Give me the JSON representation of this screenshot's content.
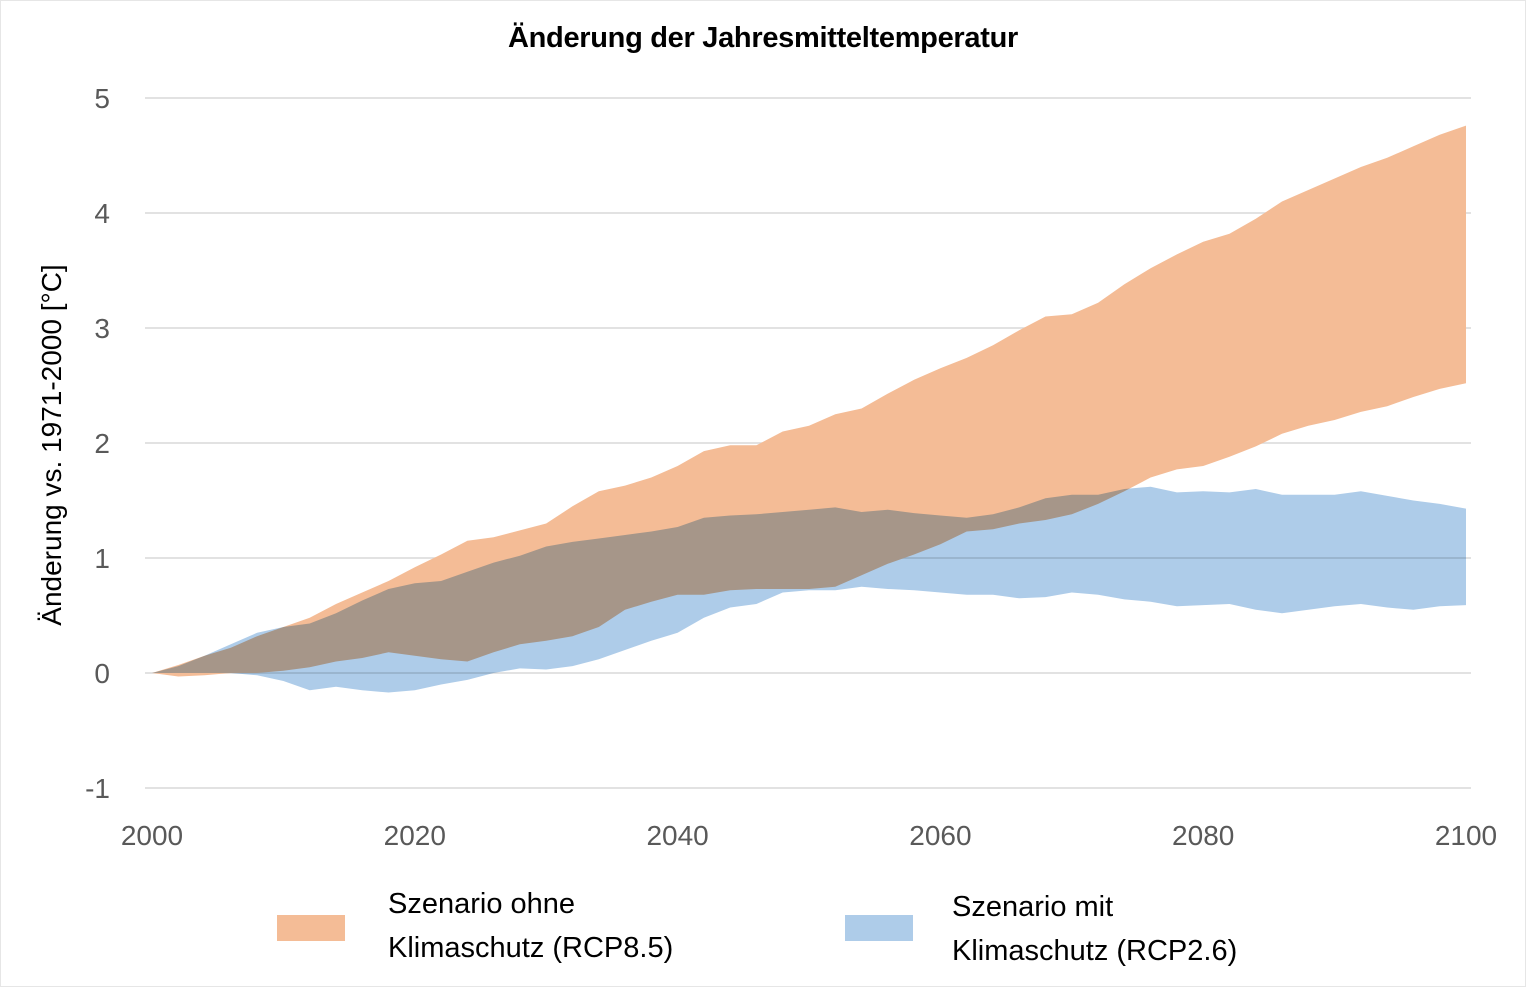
{
  "chart_data": {
    "type": "area",
    "title": "Änderung der Jahresmitteltemperatur",
    "xlabel": "",
    "ylabel": "Änderung vs. 1971-2000 [°C]",
    "xlim": [
      2000,
      2100
    ],
    "ylim": [
      -1,
      5
    ],
    "xticks": [
      2000,
      2020,
      2040,
      2060,
      2080,
      2100
    ],
    "yticks": [
      -1,
      0,
      1,
      2,
      3,
      4,
      5
    ],
    "grid": "horizontal",
    "legend_position": "bottom",
    "x": [
      2000,
      2002,
      2004,
      2006,
      2008,
      2010,
      2012,
      2014,
      2016,
      2018,
      2020,
      2022,
      2024,
      2026,
      2028,
      2030,
      2032,
      2034,
      2036,
      2038,
      2040,
      2042,
      2044,
      2046,
      2048,
      2050,
      2052,
      2054,
      2056,
      2058,
      2060,
      2062,
      2064,
      2066,
      2068,
      2070,
      2072,
      2074,
      2076,
      2078,
      2080,
      2082,
      2084,
      2086,
      2088,
      2090,
      2092,
      2094,
      2096,
      2098,
      2100
    ],
    "series": [
      {
        "name": "Szenario ohne Klimaschutz (RCP8.5)",
        "color": "#F4BC96",
        "upper": [
          0,
          0.07,
          0.15,
          0.22,
          0.32,
          0.4,
          0.48,
          0.6,
          0.7,
          0.8,
          0.92,
          1.03,
          1.15,
          1.18,
          1.24,
          1.3,
          1.45,
          1.58,
          1.63,
          1.7,
          1.8,
          1.93,
          1.98,
          1.98,
          2.1,
          2.15,
          2.25,
          2.3,
          2.43,
          2.55,
          2.65,
          2.74,
          2.85,
          2.98,
          3.1,
          3.12,
          3.22,
          3.38,
          3.52,
          3.64,
          3.75,
          3.82,
          3.95,
          4.1,
          4.2,
          4.3,
          4.4,
          4.48,
          4.58,
          4.68,
          4.76
        ],
        "lower": [
          0,
          -0.03,
          -0.02,
          0.0,
          0.0,
          0.02,
          0.05,
          0.1,
          0.13,
          0.18,
          0.15,
          0.12,
          0.1,
          0.18,
          0.25,
          0.28,
          0.32,
          0.4,
          0.55,
          0.62,
          0.68,
          0.68,
          0.72,
          0.73,
          0.73,
          0.73,
          0.75,
          0.85,
          0.95,
          1.03,
          1.12,
          1.23,
          1.25,
          1.3,
          1.33,
          1.38,
          1.47,
          1.58,
          1.7,
          1.77,
          1.8,
          1.88,
          1.97,
          2.08,
          2.15,
          2.2,
          2.27,
          2.32,
          2.4,
          2.47,
          2.52
        ]
      },
      {
        "name": "Szenario mit Klimaschutz (RCP2.6)",
        "color": "#AECCE9",
        "upper": [
          0,
          0.06,
          0.15,
          0.25,
          0.35,
          0.4,
          0.43,
          0.52,
          0.63,
          0.73,
          0.78,
          0.8,
          0.88,
          0.96,
          1.02,
          1.1,
          1.14,
          1.17,
          1.2,
          1.23,
          1.27,
          1.35,
          1.37,
          1.38,
          1.4,
          1.42,
          1.44,
          1.4,
          1.42,
          1.39,
          1.37,
          1.35,
          1.38,
          1.44,
          1.52,
          1.55,
          1.55,
          1.6,
          1.62,
          1.57,
          1.58,
          1.57,
          1.6,
          1.55,
          1.55,
          1.55,
          1.58,
          1.54,
          1.5,
          1.47,
          1.43
        ],
        "lower": [
          0,
          0.0,
          0.0,
          0.0,
          -0.02,
          -0.07,
          -0.15,
          -0.12,
          -0.15,
          -0.17,
          -0.15,
          -0.1,
          -0.06,
          0.0,
          0.04,
          0.03,
          0.06,
          0.12,
          0.2,
          0.28,
          0.35,
          0.48,
          0.57,
          0.6,
          0.7,
          0.72,
          0.72,
          0.75,
          0.73,
          0.72,
          0.7,
          0.68,
          0.68,
          0.65,
          0.66,
          0.7,
          0.68,
          0.64,
          0.62,
          0.58,
          0.59,
          0.6,
          0.55,
          0.52,
          0.55,
          0.58,
          0.6,
          0.57,
          0.55,
          0.58,
          0.59
        ]
      }
    ],
    "overlap_color": "#A8ABB6"
  },
  "legend": {
    "items": [
      {
        "line1": "Szenario ohne",
        "line2": "Klimaschutz (RCP8.5)",
        "color": "#F4BC96"
      },
      {
        "line1": "Szenario mit",
        "line2": "Klimaschutz (RCP2.6)",
        "color": "#AECCE9"
      }
    ]
  }
}
